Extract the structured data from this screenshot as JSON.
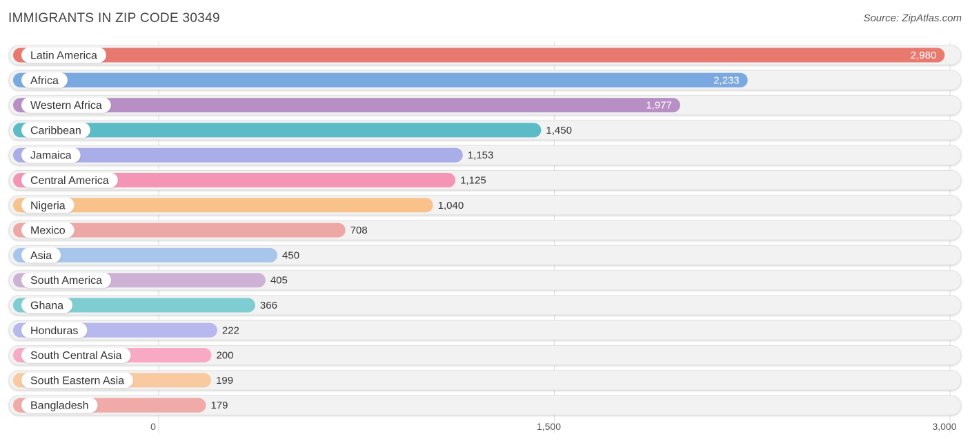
{
  "header": {
    "title": "IMMIGRANTS IN ZIP CODE 30349",
    "source": "Source: ZipAtlas.com"
  },
  "chart_data": {
    "type": "bar",
    "orientation": "horizontal",
    "title": "IMMIGRANTS IN ZIP CODE 30349",
    "xlabel": "",
    "ylabel": "",
    "xlim": [
      0,
      3000
    ],
    "ticks": [
      0,
      1500,
      3000
    ],
    "tick_labels": [
      "0",
      "1,500",
      "3,000"
    ],
    "grid": true,
    "categories": [
      "Latin America",
      "Africa",
      "Western Africa",
      "Caribbean",
      "Jamaica",
      "Central America",
      "Nigeria",
      "Mexico",
      "Asia",
      "South America",
      "Ghana",
      "Honduras",
      "South Central Asia",
      "South Eastern Asia",
      "Bangladesh"
    ],
    "values": [
      2980,
      2233,
      1977,
      1450,
      1153,
      1125,
      1040,
      708,
      450,
      405,
      366,
      222,
      200,
      199,
      179
    ],
    "value_labels": [
      "2,980",
      "2,233",
      "1,977",
      "1,450",
      "1,153",
      "1,125",
      "1,040",
      "708",
      "450",
      "405",
      "366",
      "222",
      "200",
      "199",
      "179"
    ],
    "colors": [
      "#e8796f",
      "#7aa8e0",
      "#b88fc4",
      "#5bbcc8",
      "#a9aee8",
      "#f495b5",
      "#f9c28a",
      "#eda8a6",
      "#a8c6ec",
      "#cdb2d6",
      "#7ecdd0",
      "#b7b8ee",
      "#f8aac4",
      "#f9c9a0",
      "#f0aaa8"
    ]
  }
}
